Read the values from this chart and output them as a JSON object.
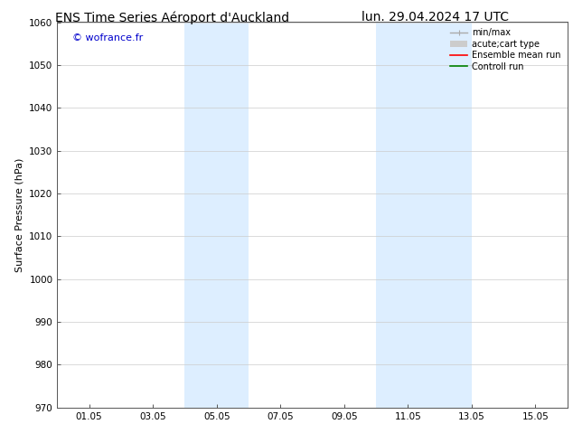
{
  "title_left": "ENS Time Series Aéroport d'Auckland",
  "title_right": "lun. 29.04.2024 17 UTC",
  "ylabel": "Surface Pressure (hPa)",
  "ylim": [
    970,
    1060
  ],
  "yticks": [
    970,
    980,
    990,
    1000,
    1010,
    1020,
    1030,
    1040,
    1050,
    1060
  ],
  "xtick_labels": [
    "01.05",
    "03.05",
    "05.05",
    "07.05",
    "09.05",
    "11.05",
    "13.05",
    "15.05"
  ],
  "xtick_positions": [
    1,
    3,
    5,
    7,
    9,
    11,
    13,
    15
  ],
  "xlim": [
    0,
    16
  ],
  "watermark": "© wofrance.fr",
  "watermark_color": "#0000cc",
  "shaded_bands": [
    {
      "xmin": 4.0,
      "xmax": 6.0
    },
    {
      "xmin": 10.0,
      "xmax": 13.0
    }
  ],
  "shade_color": "#ddeeff",
  "shade_alpha": 1.0,
  "legend_items": [
    {
      "label": "min/max",
      "color": "#aaaaaa",
      "lw": 1,
      "type": "errorbar"
    },
    {
      "label": "acute;cart type",
      "color": "#cccccc",
      "lw": 5,
      "type": "bar"
    },
    {
      "label": "Ensemble mean run",
      "color": "red",
      "lw": 1.2,
      "type": "line"
    },
    {
      "label": "Controll run",
      "color": "green",
      "lw": 1.2,
      "type": "line"
    }
  ],
  "background_color": "#ffffff",
  "grid_color": "#cccccc",
  "title_fontsize": 10,
  "ylabel_fontsize": 8,
  "tick_fontsize": 7.5,
  "watermark_fontsize": 8,
  "legend_fontsize": 7
}
